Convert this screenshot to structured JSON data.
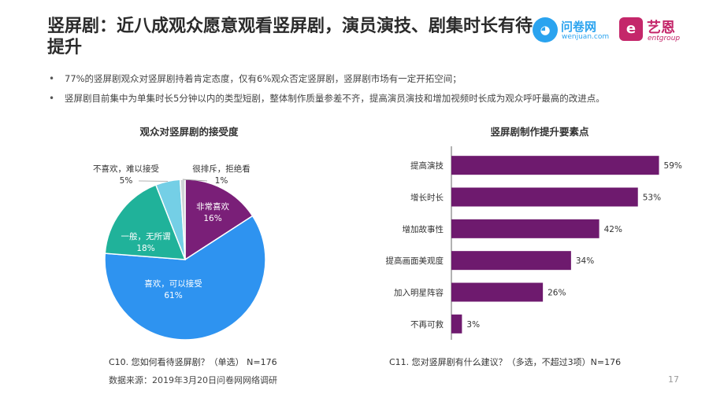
{
  "slide": {
    "title": "竖屏剧：近八成观众愿意观看竖屏剧，演员演技、剧集时长有待提升",
    "bullets": [
      "77%的竖屏剧观众对竖屏剧持着肯定态度，仅有6%观众否定竖屏剧，竖屏剧市场有一定开拓空间；",
      "竖屏剧目前集中为单集时长5分钟以内的类型短剧，整体制作质量参差不齐，提高演员演技和增加视频时长成为观众呼吁最高的改进点。"
    ],
    "page_number": "17",
    "source": "数据来源：2019年3月20日问卷网网络调研"
  },
  "logos": {
    "wenjuan_name": "问卷网",
    "wenjuan_sub": "wenjuan.com",
    "wenjuan_icon": "wenjuan-logo-icon",
    "entgroup_name": "艺恩",
    "entgroup_sub": "entgroup",
    "entgroup_icon": "entgroup-logo-icon"
  },
  "pie_chart": {
    "title": "观众对竖屏剧的接受度",
    "question": "C10. 您如何看待竖屏剧？（单选） N=176"
  },
  "bar_chart": {
    "title": "竖屏剧制作提升要素点",
    "question": "C11. 您对竖屏剧有什么建议？（多选，不超过3项）N=176"
  },
  "chart_data": [
    {
      "type": "pie",
      "title": "观众对竖屏剧的接受度",
      "slices": [
        {
          "label": "非常喜欢",
          "value": 16,
          "value_label": "16%",
          "color": "#7a1f78"
        },
        {
          "label": "喜欢，可以接受",
          "value": 61,
          "value_label": "61%",
          "color": "#2e93f0"
        },
        {
          "label": "一般，无所谓",
          "value": 18,
          "value_label": "18%",
          "color": "#20b29a"
        },
        {
          "label": "不喜欢，难以接受",
          "value": 5,
          "value_label": "5%",
          "color": "#74cfe6"
        },
        {
          "label": "很排斥，拒绝看",
          "value": 1,
          "value_label": "1%",
          "color": "#cfd3d6"
        }
      ]
    },
    {
      "type": "bar",
      "orientation": "horizontal",
      "title": "竖屏剧制作提升要素点",
      "categories": [
        "提高演技",
        "增长时长",
        "增加故事性",
        "提高画面美观度",
        "加入明星阵容",
        "不再可救"
      ],
      "values": [
        59,
        53,
        42,
        34,
        26,
        3
      ],
      "value_labels": [
        "59%",
        "53%",
        "42%",
        "34%",
        "26%",
        "3%"
      ],
      "color": "#6e1a6e",
      "xlim": [
        0,
        60
      ],
      "grid": false
    }
  ]
}
